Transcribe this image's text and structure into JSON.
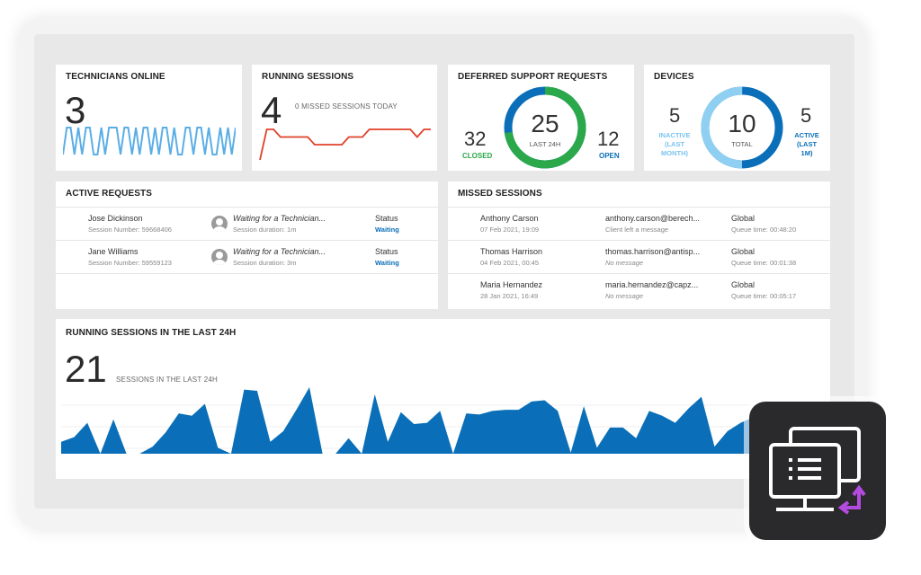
{
  "cards": {
    "technicians": {
      "title": "TECHNICIANS ONLINE",
      "value": "3"
    },
    "running": {
      "title": "RUNNING SESSIONS",
      "value": "4",
      "missed_label": "0 MISSED SESSIONS TODAY"
    },
    "deferred": {
      "title": "DEFERRED SUPPORT REQUESTS",
      "closed_value": "32",
      "closed_label": "CLOSED",
      "center_value": "25",
      "center_label": "LAST 24H",
      "open_value": "12",
      "open_label": "OPEN"
    },
    "devices": {
      "title": "DEVICES",
      "inactive_value": "5",
      "inactive_label_1": "INACTIVE",
      "inactive_label_2": "(LAST",
      "inactive_label_3": "MONTH)",
      "center_value": "10",
      "center_label": "TOTAL",
      "active_value": "5",
      "active_label_1": "ACTIVE",
      "active_label_2": "(LAST",
      "active_label_3": "1M)"
    }
  },
  "active_requests": {
    "title": "ACTIVE REQUESTS",
    "rows": [
      {
        "name": "Jose Dickinson",
        "session": "Session Number: 59668406",
        "state": "Waiting for a Technician...",
        "duration": "Session duration: 1m",
        "status_label": "Status",
        "status": "Waiting"
      },
      {
        "name": "Jane Williams",
        "session": "Session Number: 59559123",
        "state": "Waiting for a Technician...",
        "duration": "Session duration: 3m",
        "status_label": "Status",
        "status": "Waiting"
      }
    ]
  },
  "missed_sessions": {
    "title": "MISSED SESSIONS",
    "rows": [
      {
        "name": "Anthony Carson",
        "date": "07 Feb 2021, 19:09",
        "email": "anthony.carson@berech...",
        "message": "Client left a message",
        "group": "Global",
        "queue": "Queue time: 00:48:20"
      },
      {
        "name": "Thomas Harrison",
        "date": "04 Feb 2021, 00:45",
        "email": "thomas.harrison@antisp...",
        "message": "No message",
        "group": "Global",
        "queue": "Queue time: 00:01:38"
      },
      {
        "name": "Maria Hernandez",
        "date": "28 Jan 2021, 16:49",
        "email": "maria.hernandez@capz...",
        "message": "No message",
        "group": "Global",
        "queue": "Queue time: 00:05:17"
      }
    ]
  },
  "last24": {
    "title": "RUNNING SESSIONS IN THE LAST 24H",
    "value": "21",
    "label": "SESSIONS IN THE LAST 24H"
  },
  "colors": {
    "blue": "#0a6fb8",
    "light_blue": "#5aaee6",
    "green": "#2aa84a",
    "red": "#e0412a",
    "badge_bg": "#2a2a2c",
    "badge_arrow": "#b44be0"
  },
  "icons": {
    "badge": "remote-desktop-icon",
    "avatar": "user-avatar-icon"
  },
  "chart_data": [
    {
      "type": "line",
      "series": [
        {
          "values": [
            0,
            1,
            1,
            0,
            1,
            0,
            1,
            1,
            0,
            0,
            1,
            0,
            1,
            1,
            1,
            0,
            1,
            1,
            0,
            1,
            0,
            1,
            1,
            0,
            1,
            0,
            1,
            1,
            0,
            1,
            0,
            0,
            1,
            1,
            0,
            1,
            1,
            0,
            1,
            0,
            0,
            1,
            0,
            1,
            0,
            1
          ]
        }
      ]
    },
    {
      "type": "line",
      "series": [
        {
          "values": [
            0,
            4,
            4,
            3,
            3,
            3,
            3,
            3,
            2,
            2,
            2,
            2,
            2,
            3,
            3,
            3,
            4,
            4,
            4,
            4,
            4,
            4,
            4,
            3,
            4,
            4
          ]
        }
      ]
    },
    {
      "type": "pie",
      "values": [
        32,
        12
      ],
      "labels": [
        "CLOSED",
        "OPEN"
      ]
    },
    {
      "type": "pie",
      "values": [
        5,
        5
      ],
      "labels": [
        "INACTIVE",
        "ACTIVE"
      ]
    },
    {
      "type": "area",
      "series": [
        {
          "values": [
            1,
            1.4,
            2.6,
            0,
            2.9,
            0,
            0,
            0.6,
            1.8,
            3.4,
            3.2,
            4.2,
            0.5,
            0,
            5.4,
            5.3,
            1,
            1.9,
            3.7,
            5.6,
            0,
            0,
            1.3,
            0,
            5,
            1,
            3.5,
            2.5,
            2.6,
            3.6,
            0,
            3.4,
            3.3,
            3.6,
            3.7,
            3.7,
            4.4,
            4.5,
            3.6,
            0.1,
            4,
            0.5,
            2.2,
            2.2,
            1.3,
            3.6,
            3.2,
            2.6,
            3.8,
            4.8,
            0.6,
            1.9,
            2.6,
            3.1
          ]
        }
      ]
    }
  ]
}
